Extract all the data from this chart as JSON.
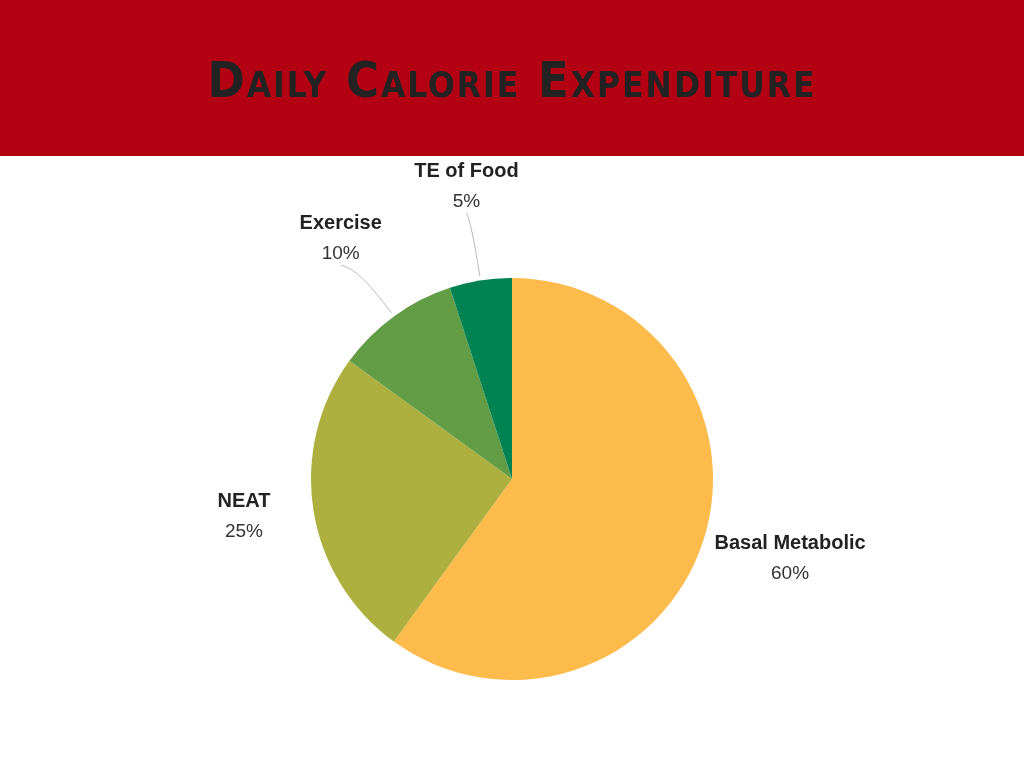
{
  "chart_data": {
    "type": "pie",
    "title": "Daily Calorie Expenditure",
    "categories": [
      "Basal Metabolic",
      "NEAT",
      "Exercise",
      "TE of Food"
    ],
    "values": [
      60,
      25,
      10,
      5
    ],
    "colors": [
      "#fdbb4b",
      "#adb03e",
      "#629c44",
      "#008252"
    ],
    "value_labels": [
      "60%",
      "25%",
      "10%",
      "5%"
    ]
  }
}
